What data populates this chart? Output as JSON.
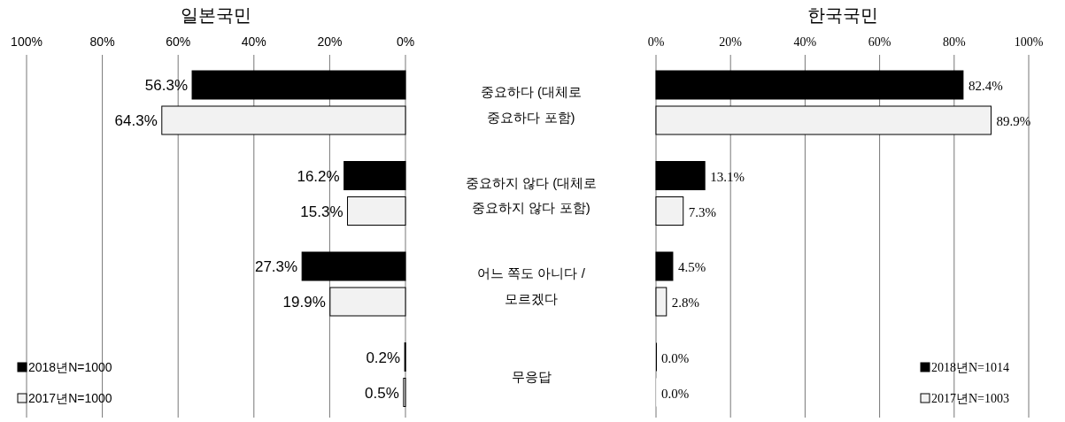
{
  "chart_data": [
    {
      "type": "bar",
      "orientation": "horizontal",
      "title": "일본국민",
      "categories": [
        "중요하다 (대체로 중요하다 포함)",
        "중요하지 않다 (대체로 중요하지 않다 포함)",
        "어느 쪽도 아니다 / 모르겠다",
        "무응답"
      ],
      "series": [
        {
          "name": "2018년N=1000",
          "color": "#000000",
          "values": [
            56.3,
            16.2,
            27.3,
            0.2
          ],
          "value_labels": [
            "56.3%",
            "16.2%",
            "27.3%",
            "0.2%"
          ]
        },
        {
          "name": "2017년N=1000",
          "color": "#f2f2f2",
          "values": [
            64.3,
            15.3,
            19.9,
            0.5
          ],
          "value_labels": [
            "64.3%",
            "15.3%",
            "19.9%",
            "0.5%"
          ]
        }
      ],
      "xlim": [
        100,
        0
      ],
      "xticks": [
        {
          "value": 100,
          "label": "100%"
        },
        {
          "value": 80,
          "label": "80%"
        },
        {
          "value": 60,
          "label": "60%"
        },
        {
          "value": 40,
          "label": "40%"
        },
        {
          "value": 20,
          "label": "20%"
        },
        {
          "value": 0,
          "label": "0%"
        }
      ],
      "grid": "x",
      "legend": "bottom left"
    },
    {
      "type": "bar",
      "orientation": "horizontal",
      "title": "한국국민",
      "categories": [
        null,
        null,
        null,
        null
      ],
      "series": [
        {
          "name": "2018년N=1014",
          "color": "#000000",
          "values": [
            82.4,
            13.1,
            4.5,
            0.0
          ],
          "value_labels": [
            "82.4%",
            "13.1%",
            "4.5%",
            "0.0%"
          ]
        },
        {
          "name": "2017년N=1003",
          "color": "#f2f2f2",
          "values": [
            89.9,
            7.3,
            2.8,
            0.0
          ],
          "value_labels": [
            "89.9%",
            "7.3%",
            "2.8%",
            "0.0%"
          ]
        }
      ],
      "xlim": [
        0,
        100
      ],
      "xticks": [
        {
          "value": 0,
          "label": "0%"
        },
        {
          "value": 20,
          "label": "20%"
        },
        {
          "value": 40,
          "label": "40%"
        },
        {
          "value": 60,
          "label": "60%"
        },
        {
          "value": 80,
          "label": "80%"
        },
        {
          "value": 100,
          "label": "100%"
        }
      ],
      "grid": "x",
      "legend": "bottom right"
    }
  ]
}
